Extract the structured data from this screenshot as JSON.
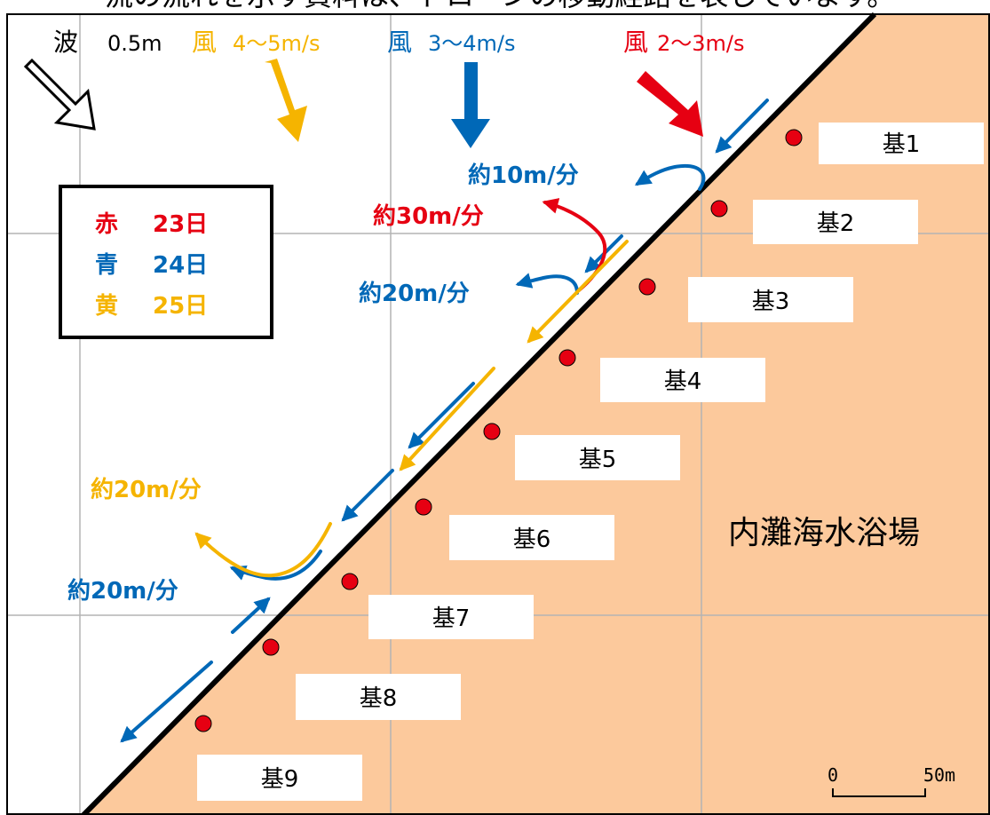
{
  "caption_top": "流の流れを示す資料は、ドローンの移動経路を表しています。",
  "conditions": {
    "wave": {
      "label": "波",
      "value": "0.5m"
    },
    "wind_yellow": {
      "label": "風",
      "value": "4〜5m/s"
    },
    "wind_blue": {
      "label": "風",
      "value": "3〜4m/s"
    },
    "wind_red": {
      "label": "風",
      "value": "2〜3m/s"
    }
  },
  "legend": {
    "items": [
      {
        "label": "赤",
        "date": "23日",
        "color": "#e60012"
      },
      {
        "label": "青",
        "date": "24日",
        "color": "#0068b7"
      },
      {
        "label": "黄",
        "date": "25日",
        "color": "#f5b400"
      }
    ]
  },
  "speeds": {
    "blue_top": "約10m/分",
    "red": "約30m/分",
    "blue_middle": "約20m/分",
    "yellow": "約20m/分",
    "blue_bottom": "約20m/分"
  },
  "piers": [
    {
      "label": "基1"
    },
    {
      "label": "基2"
    },
    {
      "label": "基3"
    },
    {
      "label": "基4"
    },
    {
      "label": "基5"
    },
    {
      "label": "基6"
    },
    {
      "label": "基7"
    },
    {
      "label": "基8"
    },
    {
      "label": "基9"
    }
  ],
  "beach_label": "内灘海水浴場",
  "scale_bar": {
    "start": "0",
    "end": "50m"
  },
  "colors": {
    "land": "#fcc99c",
    "red": "#e60012",
    "blue": "#0068b7",
    "yellow": "#f5b400",
    "gridline": "#b4b4b4"
  }
}
